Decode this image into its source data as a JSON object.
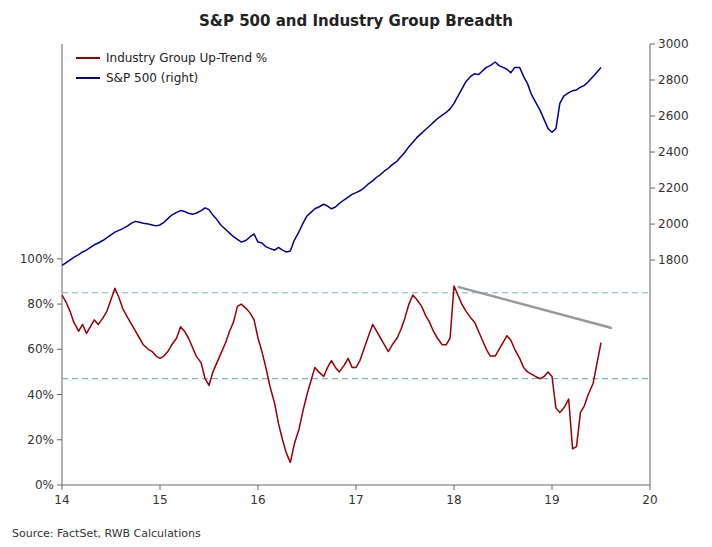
{
  "chart_data": {
    "type": "line",
    "title": "S&P 500 and Industry Group Breadth",
    "source": "Source: FactSet, RWB Calculations",
    "x": [
      14.0,
      14.04,
      14.08,
      14.12,
      14.17,
      14.21,
      14.25,
      14.29,
      14.33,
      14.37,
      14.42,
      14.46,
      14.5,
      14.54,
      14.58,
      14.62,
      14.67,
      14.71,
      14.75,
      14.79,
      14.83,
      14.88,
      14.92,
      14.96,
      15.0,
      15.04,
      15.08,
      15.12,
      15.17,
      15.21,
      15.25,
      15.29,
      15.33,
      15.37,
      15.42,
      15.46,
      15.5,
      15.54,
      15.58,
      15.62,
      15.67,
      15.71,
      15.75,
      15.79,
      15.83,
      15.88,
      15.92,
      15.96,
      16.0,
      16.04,
      16.08,
      16.12,
      16.17,
      16.21,
      16.25,
      16.29,
      16.33,
      16.37,
      16.42,
      16.46,
      16.5,
      16.54,
      16.58,
      16.62,
      16.67,
      16.71,
      16.75,
      16.79,
      16.83,
      16.88,
      16.92,
      16.96,
      17.0,
      17.04,
      17.08,
      17.12,
      17.17,
      17.21,
      17.25,
      17.29,
      17.33,
      17.37,
      17.42,
      17.46,
      17.5,
      17.54,
      17.58,
      17.62,
      17.67,
      17.71,
      17.75,
      17.79,
      17.83,
      17.88,
      17.92,
      17.96,
      18.0,
      18.04,
      18.08,
      18.12,
      18.17,
      18.21,
      18.25,
      18.29,
      18.33,
      18.37,
      18.42,
      18.46,
      18.5,
      18.54,
      18.58,
      18.62,
      18.67,
      18.71,
      18.75,
      18.79,
      18.83,
      18.88,
      18.92,
      18.96,
      19.0,
      19.04,
      19.08,
      19.12,
      19.17,
      19.21,
      19.25,
      19.29,
      19.33,
      19.37,
      19.42,
      19.46,
      19.5
    ],
    "series": [
      {
        "name": "Industry Group Up-Trend %",
        "color": "#990000",
        "axis": "y",
        "values": [
          0.84,
          0.81,
          0.77,
          0.72,
          0.68,
          0.71,
          0.67,
          0.7,
          0.73,
          0.71,
          0.74,
          0.77,
          0.82,
          0.87,
          0.83,
          0.78,
          0.74,
          0.71,
          0.68,
          0.65,
          0.62,
          0.6,
          0.59,
          0.57,
          0.56,
          0.57,
          0.59,
          0.62,
          0.65,
          0.7,
          0.68,
          0.65,
          0.61,
          0.57,
          0.54,
          0.47,
          0.44,
          0.5,
          0.54,
          0.58,
          0.63,
          0.68,
          0.72,
          0.79,
          0.8,
          0.78,
          0.76,
          0.73,
          0.65,
          0.59,
          0.52,
          0.44,
          0.36,
          0.27,
          0.2,
          0.14,
          0.1,
          0.18,
          0.25,
          0.33,
          0.4,
          0.46,
          0.52,
          0.5,
          0.48,
          0.52,
          0.55,
          0.52,
          0.5,
          0.53,
          0.56,
          0.52,
          0.52,
          0.55,
          0.6,
          0.65,
          0.71,
          0.68,
          0.65,
          0.62,
          0.59,
          0.62,
          0.65,
          0.69,
          0.74,
          0.8,
          0.84,
          0.82,
          0.79,
          0.75,
          0.72,
          0.68,
          0.65,
          0.62,
          0.62,
          0.65,
          0.88,
          0.84,
          0.8,
          0.77,
          0.74,
          0.72,
          0.68,
          0.64,
          0.6,
          0.57,
          0.57,
          0.6,
          0.63,
          0.66,
          0.64,
          0.6,
          0.56,
          0.52,
          0.5,
          0.49,
          0.48,
          0.47,
          0.48,
          0.5,
          0.48,
          0.34,
          0.32,
          0.34,
          0.38,
          0.16,
          0.17,
          0.32,
          0.35,
          0.4,
          0.45,
          0.54,
          0.63
        ]
      },
      {
        "name": "S&P 500 (right)",
        "color": "#000099",
        "axis": "y2",
        "values": [
          1770,
          1785,
          1800,
          1815,
          1830,
          1845,
          1855,
          1870,
          1885,
          1895,
          1910,
          1925,
          1940,
          1955,
          1965,
          1975,
          1990,
          2005,
          2015,
          2010,
          2005,
          2000,
          1995,
          1990,
          1995,
          2010,
          2030,
          2050,
          2065,
          2075,
          2070,
          2060,
          2055,
          2060,
          2075,
          2090,
          2080,
          2050,
          2025,
          1995,
          1970,
          1950,
          1930,
          1915,
          1900,
          1910,
          1930,
          1945,
          1900,
          1895,
          1875,
          1865,
          1855,
          1870,
          1855,
          1845,
          1850,
          1910,
          1960,
          2005,
          2045,
          2065,
          2085,
          2095,
          2110,
          2100,
          2085,
          2095,
          2115,
          2135,
          2150,
          2165,
          2175,
          2185,
          2200,
          2220,
          2240,
          2260,
          2275,
          2295,
          2310,
          2330,
          2350,
          2375,
          2400,
          2430,
          2455,
          2480,
          2505,
          2525,
          2545,
          2565,
          2585,
          2605,
          2620,
          2640,
          2670,
          2710,
          2750,
          2790,
          2820,
          2835,
          2830,
          2850,
          2870,
          2880,
          2900,
          2880,
          2870,
          2860,
          2840,
          2870,
          2870,
          2820,
          2780,
          2720,
          2680,
          2630,
          2580,
          2530,
          2510,
          2530,
          2670,
          2710,
          2730,
          2740,
          2745,
          2760,
          2770,
          2790,
          2820,
          2845,
          2870
        ]
      }
    ],
    "reference_lines": [
      {
        "value": 0.85,
        "color": "#7eb0d5",
        "line_style": "dashed"
      },
      {
        "value": 0.47,
        "color": "#7eb0d5",
        "line_style": "dashed"
      }
    ],
    "trend_line": {
      "x": [
        18.05,
        19.6
      ],
      "values": [
        0.875,
        0.695
      ],
      "color": "#999999"
    },
    "xlim": [
      14,
      20
    ],
    "xticks": [
      14,
      15,
      16,
      17,
      18,
      19,
      20
    ],
    "ylim": [
      0,
      1.95
    ],
    "yticks": [
      {
        "value": 0.0,
        "label": "0%"
      },
      {
        "value": 0.2,
        "label": "20%"
      },
      {
        "value": 0.4,
        "label": "40%"
      },
      {
        "value": 0.6,
        "label": "60%"
      },
      {
        "value": 0.8,
        "label": "80%"
      },
      {
        "value": 1.0,
        "label": "100%"
      }
    ],
    "y2lim": [
      551,
      3000
    ],
    "y2ticks": [
      1800,
      2000,
      2200,
      2400,
      2600,
      2800,
      3000
    ],
    "legend": "upper left",
    "grid": false
  }
}
